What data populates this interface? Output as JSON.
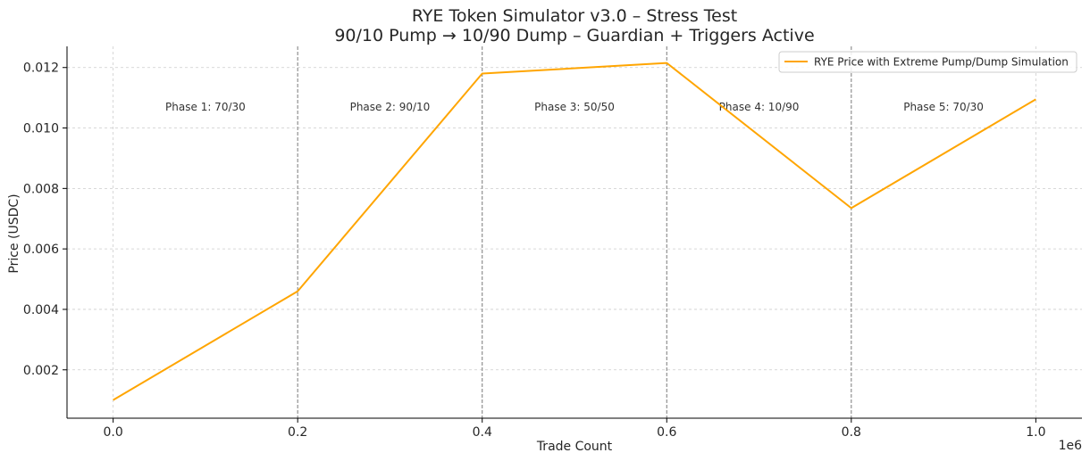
{
  "chart_data": {
    "type": "line",
    "title": "RYE Token Simulator v3.0 – Stress Test",
    "subtitle": "90/10 Pump → 10/90 Dump – Guardian + Triggers Active",
    "xlabel": "Trade Count",
    "ylabel": "Price (USDC)",
    "x_multiplier_label": "1e6",
    "xlim": [
      -0.05,
      1.05
    ],
    "ylim": [
      0.0004,
      0.0127
    ],
    "x_ticks": [
      0.0,
      0.2,
      0.4,
      0.6,
      0.8,
      1.0
    ],
    "x_tick_labels": [
      "0.0",
      "0.2",
      "0.4",
      "0.6",
      "0.8",
      "1.0"
    ],
    "y_ticks": [
      0.002,
      0.004,
      0.006,
      0.008,
      0.01,
      0.012
    ],
    "y_tick_labels": [
      "0.002",
      "0.004",
      "0.006",
      "0.008",
      "0.010",
      "0.012"
    ],
    "grid": true,
    "legend_position": "top-right",
    "series": [
      {
        "name": "RYE Price with Extreme Pump/Dump Simulation",
        "color": "#FFA500",
        "x": [
          0.0,
          0.2,
          0.4,
          0.6,
          0.8,
          1.0
        ],
        "y": [
          0.001,
          0.0046,
          0.0118,
          0.01215,
          0.00735,
          0.01095
        ]
      }
    ],
    "phase_boundaries": [
      0.2,
      0.4,
      0.6,
      0.8
    ],
    "phases": [
      {
        "label": "Phase 1: 70/30",
        "x_center": 0.1,
        "y": 0.0107
      },
      {
        "label": "Phase 2: 90/10",
        "x_center": 0.3,
        "y": 0.0107
      },
      {
        "label": "Phase 3: 50/50",
        "x_center": 0.5,
        "y": 0.0107
      },
      {
        "label": "Phase 4: 10/90",
        "x_center": 0.7,
        "y": 0.0107
      },
      {
        "label": "Phase 5: 70/30",
        "x_center": 0.9,
        "y": 0.0107
      }
    ]
  }
}
